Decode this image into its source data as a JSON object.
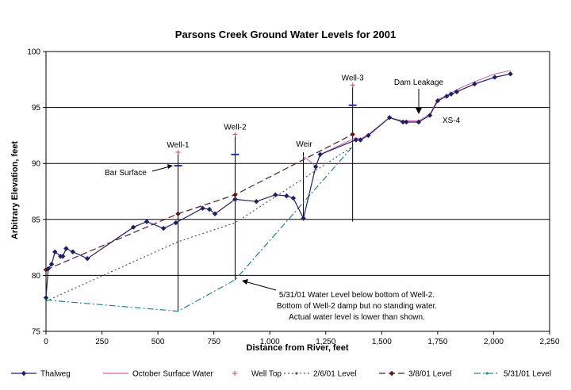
{
  "chart_data": {
    "type": "line",
    "title": "Parsons Creek Ground Water Levels for 2001",
    "xlabel": "Distance from River, feet",
    "ylabel": "Arbitrary Elevation, feet",
    "xlim": [
      0,
      2250
    ],
    "ylim": [
      75,
      100
    ],
    "x_ticks": [
      0,
      250,
      500,
      750,
      1000,
      1250,
      1500,
      1750,
      2000,
      2250
    ],
    "x_tick_labels": [
      "0",
      "250",
      "500",
      "750",
      "1,000",
      "1,250",
      "1,500",
      "1,750",
      "2,000",
      "2,250"
    ],
    "y_ticks": [
      75,
      80,
      85,
      90,
      95,
      100
    ],
    "y_tick_labels": [
      "75",
      "80",
      "85",
      "90",
      "95",
      "100"
    ],
    "gridlines": "horizontal",
    "legend_position": "bottom",
    "series": [
      {
        "name": "Thalweg",
        "color": "#1f1f6e",
        "style": "solid-diamond",
        "x": [
          0,
          10,
          25,
          40,
          65,
          75,
          90,
          120,
          185,
          390,
          450,
          525,
          580,
          700,
          730,
          755,
          845,
          940,
          1025,
          1075,
          1105,
          1150,
          1205,
          1225,
          1385,
          1405,
          1440,
          1535,
          1595,
          1610,
          1665,
          1715,
          1750,
          1790,
          1810,
          1835,
          1915,
          2005,
          2075
        ],
        "y": [
          78.0,
          80.6,
          81.0,
          82.1,
          81.7,
          81.7,
          82.4,
          82.1,
          81.5,
          84.3,
          84.8,
          84.2,
          84.7,
          86.0,
          85.9,
          85.5,
          86.8,
          86.6,
          87.2,
          87.1,
          86.9,
          85.1,
          89.7,
          90.8,
          92.1,
          92.1,
          92.5,
          94.1,
          93.7,
          93.7,
          93.7,
          94.3,
          95.6,
          96.0,
          96.2,
          96.4,
          97.1,
          97.7,
          98.0
        ]
      },
      {
        "name": "October Surface Water",
        "color": "#d060a8",
        "style": "solid",
        "x": [
          1150,
          1180,
          1205,
          1225,
          1385,
          1405,
          1440,
          1535,
          1595,
          1665,
          1715,
          1750,
          1790,
          1810,
          1835,
          1915,
          2005,
          2075
        ],
        "y": [
          90.6,
          90.2,
          89.7,
          90.8,
          92.3,
          92.2,
          92.6,
          94.1,
          93.8,
          93.8,
          94.4,
          95.7,
          96.1,
          96.3,
          96.6,
          97.3,
          98.0,
          98.3
        ]
      },
      {
        "name": "Well Top",
        "color": "#d06080",
        "style": "plus-marker",
        "x": [
          590,
          845,
          1370
        ],
        "y": [
          91.0,
          92.6,
          97.0
        ]
      },
      {
        "name": "2/6/01 Level",
        "color": "#555555",
        "style": "dotted",
        "x": [
          0,
          590,
          845,
          1370
        ],
        "y": [
          77.7,
          83.0,
          84.7,
          91.5
        ]
      },
      {
        "name": "3/8/01 Level",
        "color": "#5a1a1a",
        "style": "dashed",
        "x": [
          0,
          590,
          845,
          1370
        ],
        "y": [
          80.5,
          85.5,
          87.2,
          92.6
        ]
      },
      {
        "name": "5/31/01 Level",
        "color": "#1f8a8a",
        "style": "dash-dot",
        "x": [
          0,
          590,
          845,
          1370
        ],
        "y": [
          77.8,
          76.8,
          79.6,
          91.5
        ]
      }
    ],
    "wells": [
      {
        "label": "Well-1",
        "x": 590,
        "bottom": 76.8,
        "top": 91.0,
        "tick": 89.8
      },
      {
        "label": "Well-2",
        "x": 845,
        "bottom": 79.6,
        "top": 92.6,
        "tick": 90.8
      },
      {
        "label": "Well-3",
        "x": 1370,
        "bottom": 84.8,
        "top": 97.0,
        "tick": 95.2
      }
    ],
    "weir": {
      "label": "Weir",
      "x": 1150,
      "bottom": 85.1,
      "top": 91.0
    },
    "annotations": [
      {
        "id": "bar-surface",
        "text": "Bar Surface"
      },
      {
        "id": "dam-leakage",
        "text": "Dam Leakage"
      },
      {
        "id": "xs4",
        "text": "XS-4"
      },
      {
        "id": "note-line1",
        "text": "5/31/01 Water Level below bottom of Well-2."
      },
      {
        "id": "note-line2",
        "text": "Bottom of Well-2 damp but no standing water."
      },
      {
        "id": "note-line3",
        "text": "Actual water level is lower than shown."
      }
    ]
  }
}
